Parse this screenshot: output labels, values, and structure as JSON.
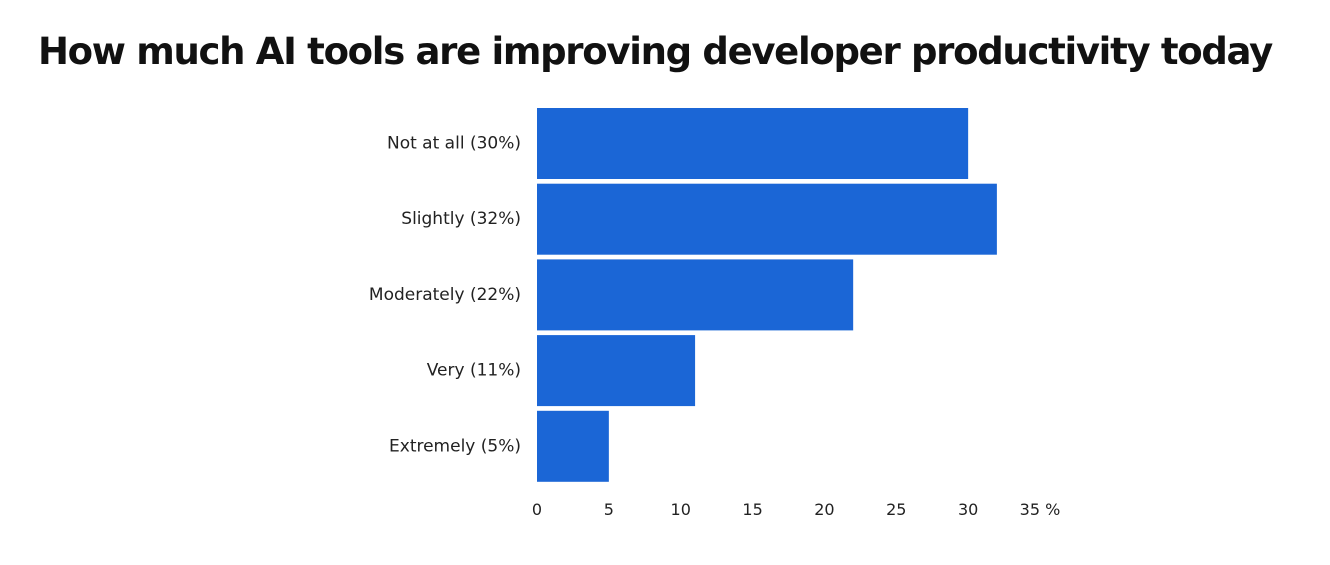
{
  "chart_data": {
    "type": "bar",
    "orientation": "horizontal",
    "title": "How much AI tools are improving developer productivity today",
    "categories": [
      "Not at all (30%)",
      "Slightly (32%)",
      "Moderately (22%)",
      "Very (11%)",
      "Extremely (5%)"
    ],
    "values": [
      30,
      32,
      22,
      11,
      5
    ],
    "xlim": [
      0,
      35
    ],
    "xticks": [
      "0",
      "5",
      "10",
      "15",
      "20",
      "25",
      "30",
      "35 %"
    ],
    "xlabel": "",
    "ylabel": "",
    "grid": false,
    "legend": "none",
    "bar_color": "#1b66d6"
  }
}
